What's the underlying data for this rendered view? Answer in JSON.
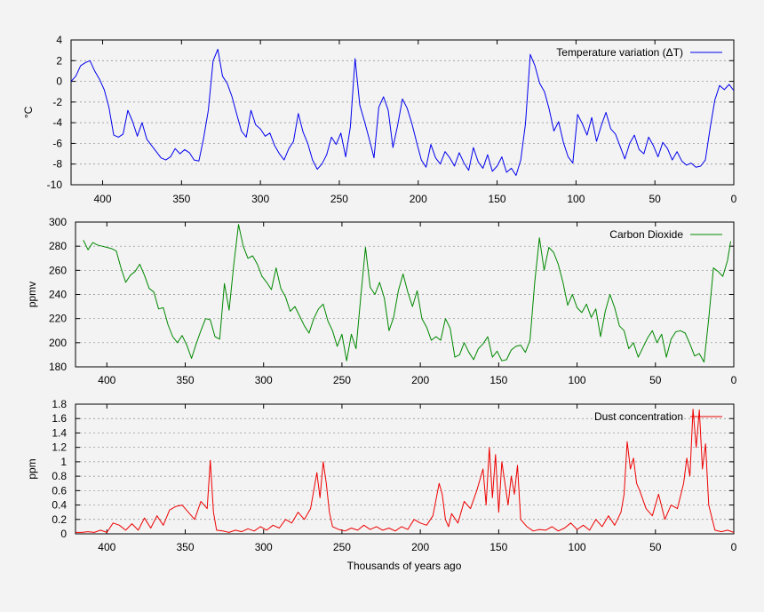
{
  "figure": {
    "xlabel": "Thousands of years ago"
  },
  "chart_data": [
    {
      "type": "line",
      "series_name": "Temperature variation (ΔT)",
      "color": "#0000ee",
      "ylabel": "°C",
      "xlim": [
        420,
        0
      ],
      "ylim": [
        -10,
        4
      ],
      "xticks": [
        400,
        350,
        300,
        250,
        200,
        150,
        100,
        50,
        0
      ],
      "yticks": [
        4,
        2,
        0,
        -2,
        -4,
        -6,
        -8,
        -10
      ],
      "x": [
        420,
        417,
        414,
        411,
        408,
        405,
        402,
        399,
        396,
        393,
        390,
        387,
        384,
        381,
        378,
        375,
        372,
        369,
        366,
        363,
        360,
        357,
        354,
        351,
        348,
        345,
        342,
        339,
        336,
        333,
        330,
        327,
        324,
        321,
        318,
        315,
        312,
        309,
        306,
        303,
        300,
        297,
        294,
        291,
        288,
        285,
        282,
        279,
        276,
        273,
        270,
        267,
        264,
        261,
        258,
        255,
        252,
        249,
        246,
        243,
        240,
        237,
        234,
        231,
        228,
        225,
        222,
        219,
        216,
        213,
        210,
        207,
        204,
        201,
        198,
        195,
        192,
        189,
        186,
        183,
        180,
        177,
        174,
        171,
        168,
        165,
        162,
        159,
        156,
        153,
        150,
        147,
        144,
        141,
        138,
        135,
        132,
        129,
        126,
        123,
        120,
        117,
        114,
        111,
        108,
        105,
        102,
        99,
        96,
        93,
        90,
        87,
        84,
        81,
        78,
        75,
        72,
        69,
        66,
        63,
        60,
        57,
        54,
        51,
        48,
        45,
        42,
        39,
        36,
        33,
        30,
        27,
        24,
        21,
        18,
        15,
        12,
        9,
        6,
        3,
        0
      ],
      "values": [
        0,
        0.5,
        1.5,
        1.8,
        2.0,
        1.0,
        0.2,
        -0.8,
        -2.5,
        -5.2,
        -5.4,
        -5.1,
        -2.8,
        -3.9,
        -5.3,
        -4.0,
        -5.6,
        -6.2,
        -6.8,
        -7.4,
        -7.6,
        -7.3,
        -6.5,
        -7.0,
        -6.6,
        -6.9,
        -7.6,
        -7.7,
        -5.5,
        -2.8,
        2.0,
        3.1,
        0.5,
        -0.2,
        -1.5,
        -3.2,
        -4.8,
        -5.4,
        -2.8,
        -4.2,
        -4.6,
        -5.3,
        -5.0,
        -6.2,
        -7.0,
        -7.6,
        -6.5,
        -5.8,
        -3.1,
        -4.9,
        -6.0,
        -7.6,
        -8.5,
        -8.0,
        -7.1,
        -5.4,
        -6.1,
        -5.0,
        -7.3,
        -4.4,
        2.2,
        -2.3,
        -3.9,
        -5.6,
        -7.4,
        -2.5,
        -1.5,
        -2.8,
        -6.4,
        -4.2,
        -1.7,
        -2.6,
        -4.1,
        -5.9,
        -7.6,
        -8.3,
        -6.1,
        -7.4,
        -8.0,
        -6.8,
        -7.4,
        -8.2,
        -6.9,
        -7.9,
        -8.6,
        -6.4,
        -7.8,
        -8.4,
        -7.1,
        -8.7,
        -8.2,
        -7.3,
        -8.8,
        -8.4,
        -9.1,
        -7.6,
        -4.1,
        2.6,
        1.5,
        -0.2,
        -1.0,
        -2.7,
        -4.8,
        -3.9,
        -5.9,
        -7.3,
        -7.9,
        -3.2,
        -4.1,
        -5.2,
        -3.5,
        -5.8,
        -4.3,
        -3.0,
        -4.6,
        -5.1,
        -6.3,
        -7.5,
        -6.0,
        -5.2,
        -6.6,
        -7.0,
        -5.4,
        -6.2,
        -7.3,
        -5.9,
        -6.5,
        -7.6,
        -6.8,
        -7.7,
        -8.1,
        -7.9,
        -8.3,
        -8.2,
        -7.6,
        -4.5,
        -1.8,
        -0.4,
        -0.8,
        -0.3,
        -0.9
      ]
    },
    {
      "type": "line",
      "series_name": "Carbon Dioxide",
      "color": "#008800",
      "ylabel": "ppmv",
      "xlim": [
        420,
        0
      ],
      "ylim": [
        180,
        300
      ],
      "xticks": [
        400,
        350,
        300,
        250,
        200,
        150,
        100,
        50,
        0
      ],
      "yticks": [
        300,
        280,
        260,
        240,
        220,
        200,
        180
      ],
      "x": [
        415,
        412,
        409,
        406,
        403,
        400,
        397,
        394,
        391,
        388,
        385,
        382,
        379,
        376,
        373,
        370,
        367,
        364,
        361,
        358,
        355,
        352,
        349,
        346,
        343,
        340,
        337,
        334,
        331,
        328,
        325,
        322,
        319,
        316,
        313,
        310,
        307,
        304,
        301,
        298,
        295,
        292,
        289,
        286,
        283,
        280,
        277,
        274,
        271,
        268,
        265,
        262,
        259,
        256,
        253,
        250,
        247,
        244,
        241,
        238,
        235,
        232,
        229,
        226,
        223,
        220,
        217,
        214,
        211,
        208,
        205,
        202,
        199,
        196,
        193,
        190,
        187,
        184,
        181,
        178,
        175,
        172,
        169,
        166,
        163,
        160,
        157,
        154,
        151,
        148,
        145,
        142,
        139,
        136,
        133,
        130,
        127,
        124,
        121,
        118,
        115,
        112,
        109,
        106,
        103,
        100,
        97,
        94,
        91,
        88,
        85,
        82,
        79,
        76,
        73,
        70,
        67,
        64,
        61,
        58,
        55,
        52,
        49,
        46,
        43,
        40,
        37,
        34,
        31,
        28,
        25,
        22,
        19,
        16,
        13,
        10,
        7,
        4,
        2
      ],
      "values": [
        285,
        277,
        283,
        281,
        280,
        279,
        278,
        276,
        262,
        250,
        256,
        259,
        265,
        256,
        245,
        242,
        228,
        229,
        215,
        205,
        200,
        206,
        198,
        187,
        199,
        210,
        220,
        219,
        205,
        203,
        249,
        227,
        265,
        298,
        280,
        270,
        272,
        265,
        255,
        250,
        244,
        262,
        245,
        238,
        226,
        230,
        222,
        214,
        208,
        220,
        228,
        232,
        218,
        210,
        197,
        207,
        185,
        207,
        195,
        238,
        279,
        246,
        240,
        250,
        237,
        210,
        221,
        243,
        257,
        242,
        230,
        243,
        220,
        213,
        202,
        205,
        202,
        220,
        212,
        188,
        190,
        200,
        192,
        186,
        195,
        199,
        205,
        188,
        193,
        185,
        186,
        194,
        197,
        198,
        192,
        202,
        250,
        287,
        260,
        279,
        275,
        265,
        250,
        231,
        240,
        229,
        225,
        232,
        221,
        228,
        205,
        226,
        240,
        229,
        214,
        210,
        195,
        200,
        188,
        196,
        204,
        210,
        200,
        207,
        188,
        203,
        209,
        210,
        208,
        199,
        189,
        191,
        184,
        220,
        262,
        259,
        255,
        268,
        284
      ]
    },
    {
      "type": "line",
      "series_name": "Dust concentration",
      "color": "#ee0000",
      "ylabel": "ppm",
      "xlim": [
        420,
        0
      ],
      "ylim": [
        0,
        1.8
      ],
      "xticks": [
        400,
        350,
        300,
        250,
        200,
        150,
        100,
        50,
        0
      ],
      "yticks": [
        1.8,
        1.6,
        1.4,
        1.2,
        1,
        0.8,
        0.6,
        0.4,
        0.2,
        0
      ],
      "x": [
        420,
        416,
        412,
        408,
        404,
        400,
        396,
        392,
        388,
        384,
        380,
        376,
        372,
        368,
        364,
        360,
        356,
        352,
        348,
        344,
        340,
        336,
        334,
        332,
        330,
        326,
        322,
        318,
        314,
        310,
        306,
        302,
        298,
        294,
        290,
        286,
        282,
        278,
        274,
        270,
        266,
        264,
        262,
        260,
        258,
        256,
        252,
        248,
        244,
        240,
        236,
        232,
        228,
        224,
        220,
        216,
        212,
        208,
        204,
        200,
        196,
        192,
        188,
        186,
        184,
        182,
        180,
        176,
        172,
        168,
        164,
        160,
        158,
        156,
        154,
        152,
        150,
        148,
        146,
        144,
        142,
        140,
        138,
        136,
        132,
        128,
        124,
        120,
        116,
        112,
        108,
        104,
        100,
        96,
        92,
        88,
        84,
        80,
        76,
        72,
        70,
        68,
        66,
        64,
        62,
        60,
        56,
        52,
        48,
        44,
        40,
        36,
        32,
        30,
        28,
        26,
        24,
        22,
        20,
        18,
        16,
        12,
        8,
        4,
        0
      ],
      "values": [
        0.02,
        0.02,
        0.03,
        0.02,
        0.05,
        0.02,
        0.15,
        0.12,
        0.05,
        0.14,
        0.05,
        0.22,
        0.08,
        0.25,
        0.12,
        0.33,
        0.38,
        0.4,
        0.3,
        0.2,
        0.45,
        0.35,
        1.02,
        0.3,
        0.05,
        0.04,
        0.02,
        0.05,
        0.03,
        0.07,
        0.04,
        0.1,
        0.05,
        0.12,
        0.08,
        0.2,
        0.15,
        0.3,
        0.2,
        0.35,
        0.85,
        0.5,
        1.0,
        0.7,
        0.3,
        0.1,
        0.06,
        0.04,
        0.08,
        0.05,
        0.12,
        0.06,
        0.1,
        0.05,
        0.08,
        0.04,
        0.1,
        0.06,
        0.2,
        0.15,
        0.12,
        0.25,
        0.7,
        0.55,
        0.2,
        0.1,
        0.28,
        0.15,
        0.45,
        0.35,
        0.6,
        0.9,
        0.4,
        1.2,
        0.5,
        1.1,
        0.3,
        1.0,
        0.7,
        0.4,
        0.8,
        0.55,
        0.95,
        0.2,
        0.1,
        0.04,
        0.06,
        0.05,
        0.1,
        0.04,
        0.08,
        0.15,
        0.06,
        0.12,
        0.05,
        0.2,
        0.1,
        0.25,
        0.12,
        0.3,
        0.55,
        1.28,
        0.9,
        1.05,
        0.7,
        0.6,
        0.35,
        0.25,
        0.55,
        0.2,
        0.4,
        0.35,
        0.7,
        1.05,
        0.8,
        1.73,
        1.2,
        1.72,
        0.9,
        1.25,
        0.4,
        0.05,
        0.03,
        0.05,
        0.02
      ]
    }
  ]
}
